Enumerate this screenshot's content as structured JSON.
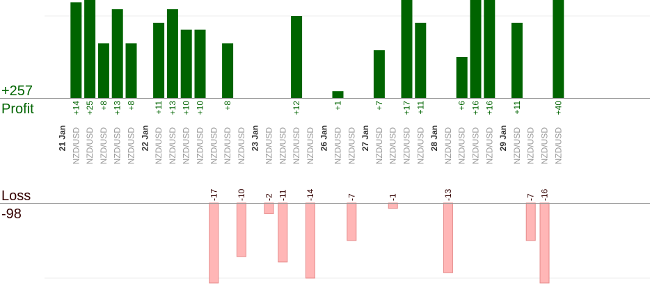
{
  "colors": {
    "profit": "#006400",
    "profit_text": "#006400",
    "loss_fill": "#ffb6b6",
    "loss_stroke": "#e58a8a",
    "loss_text": "#330000",
    "pair_text": "#999999",
    "date_text": "#333333",
    "axis": "#999999",
    "grid": "#eeeeee"
  },
  "profit_panel": {
    "total_label": "+257",
    "title": "Profit"
  },
  "loss_panel": {
    "title": "Loss",
    "total_label": "-98"
  },
  "chart_data": {
    "type": "bar",
    "pair": "NZD/USD",
    "dates": [
      "21 Jan",
      "22 Jan",
      "23 Jan",
      "26 Jan",
      "27 Jan",
      "28 Jan",
      "29 Jan"
    ],
    "trades": [
      {
        "date": "21 Jan",
        "pair": "NZD/USD",
        "result": 14,
        "label": "+14"
      },
      {
        "date": "21 Jan",
        "pair": "NZD/USD",
        "result": 25,
        "label": "+25"
      },
      {
        "date": "21 Jan",
        "pair": "NZD/USD",
        "result": 8,
        "label": "+8"
      },
      {
        "date": "21 Jan",
        "pair": "NZD/USD",
        "result": 13,
        "label": "+13"
      },
      {
        "date": "21 Jan",
        "pair": "NZD/USD",
        "result": 8,
        "label": "+8"
      },
      {
        "date": "22 Jan",
        "pair": "NZD/USD",
        "result": 11,
        "label": "+11"
      },
      {
        "date": "22 Jan",
        "pair": "NZD/USD",
        "result": 13,
        "label": "+13"
      },
      {
        "date": "22 Jan",
        "pair": "NZD/USD",
        "result": 10,
        "label": "+10"
      },
      {
        "date": "22 Jan",
        "pair": "NZD/USD",
        "result": 10,
        "label": "+10"
      },
      {
        "date": "22 Jan",
        "pair": "NZD/USD",
        "result": -17,
        "label": "-17"
      },
      {
        "date": "22 Jan",
        "pair": "NZD/USD",
        "result": 8,
        "label": "+8"
      },
      {
        "date": "22 Jan",
        "pair": "NZD/USD",
        "result": -10,
        "label": "-10"
      },
      {
        "date": "23 Jan",
        "pair": "NZD/USD",
        "result": -2,
        "label": "-2"
      },
      {
        "date": "23 Jan",
        "pair": "NZD/USD",
        "result": -11,
        "label": "-11"
      },
      {
        "date": "23 Jan",
        "pair": "NZD/USD",
        "result": 12,
        "label": "+12"
      },
      {
        "date": "23 Jan",
        "pair": "NZD/USD",
        "result": -14,
        "label": "-14"
      },
      {
        "date": "26 Jan",
        "pair": "NZD/USD",
        "result": 1,
        "label": "+1"
      },
      {
        "date": "26 Jan",
        "pair": "NZD/USD",
        "result": -7,
        "label": "-7"
      },
      {
        "date": "27 Jan",
        "pair": "NZD/USD",
        "result": 7,
        "label": "+7"
      },
      {
        "date": "27 Jan",
        "pair": "NZD/USD",
        "result": -1,
        "label": "-1"
      },
      {
        "date": "27 Jan",
        "pair": "NZD/USD",
        "result": 17,
        "label": "+17"
      },
      {
        "date": "27 Jan",
        "pair": "NZD/USD",
        "result": 11,
        "label": "+11"
      },
      {
        "date": "28 Jan",
        "pair": "NZD/USD",
        "result": -13,
        "label": "-13"
      },
      {
        "date": "28 Jan",
        "pair": "NZD/USD",
        "result": 6,
        "label": "+6"
      },
      {
        "date": "28 Jan",
        "pair": "NZD/USD",
        "result": 16,
        "label": "+16"
      },
      {
        "date": "28 Jan",
        "pair": "NZD/USD",
        "result": 16,
        "label": "+16"
      },
      {
        "date": "29 Jan",
        "pair": "NZD/USD",
        "result": 11,
        "label": "+11"
      },
      {
        "date": "29 Jan",
        "pair": "NZD/USD",
        "result": -7,
        "label": "-7"
      },
      {
        "date": "29 Jan",
        "pair": "NZD/USD",
        "result": -16,
        "label": "-16"
      },
      {
        "date": "29 Jan",
        "pair": "NZD/USD",
        "result": 40,
        "label": "+40"
      }
    ],
    "profit_axis_range": [
      0,
      12
    ],
    "loss_axis_range": [
      0,
      14
    ],
    "grid": true,
    "clipped_tall_bars": true
  }
}
